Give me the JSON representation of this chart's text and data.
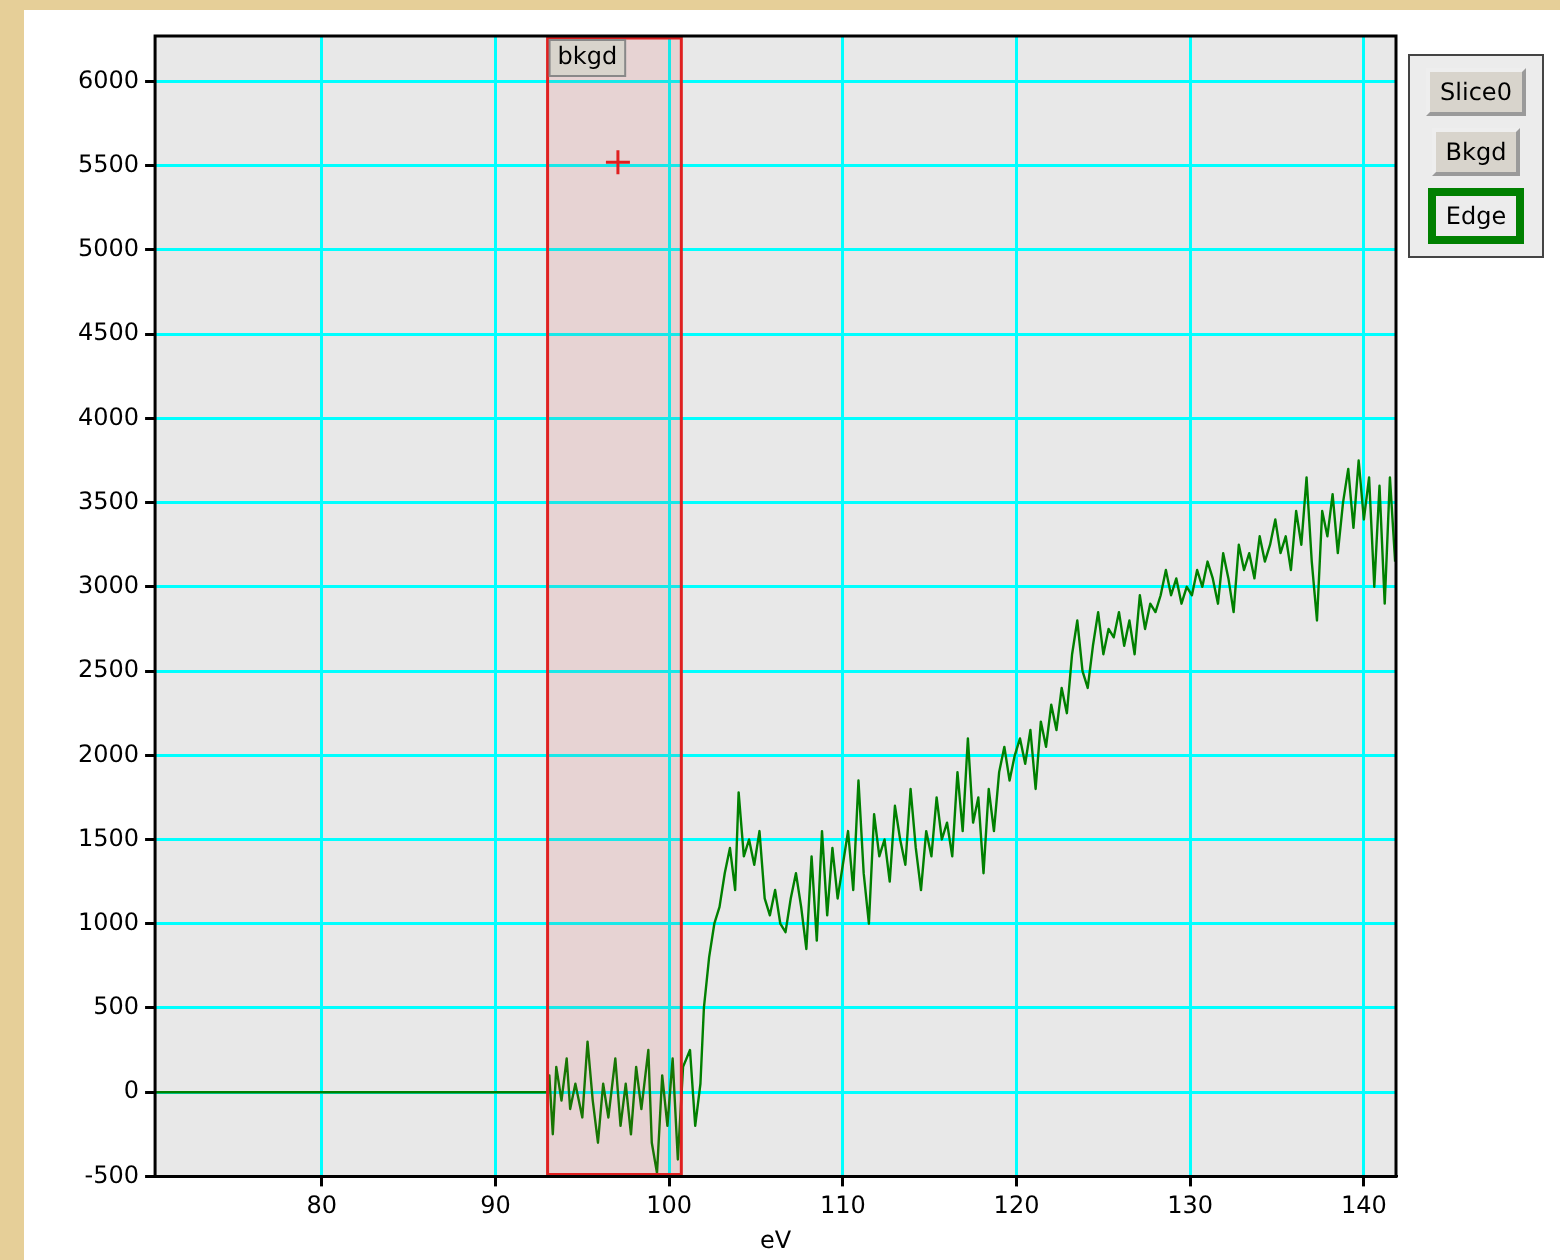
{
  "chart_data": {
    "type": "line",
    "xlabel": "eV",
    "xlim": [
      70.4,
      141.85
    ],
    "xticks": [
      80,
      90,
      100,
      110,
      120,
      130,
      140
    ],
    "ylim": [
      -500,
      6270
    ],
    "yticks": [
      -500,
      0,
      500,
      1000,
      1500,
      2000,
      2500,
      3000,
      3500,
      4000,
      4500,
      5000,
      5500,
      6000
    ],
    "grid": true,
    "legend": false,
    "annotations": [
      "Slice0",
      "Bkgd",
      "Edge"
    ],
    "bands": [
      {
        "axis": "x",
        "from": 93.0,
        "to": 100.7,
        "label": "bkgd",
        "color": "#e02020"
      }
    ],
    "series": [
      {
        "color": "#008000",
        "marker": "none",
        "x": [
          70.4,
          93.0,
          93.1,
          93.3,
          93.5,
          93.8,
          94.1,
          94.3,
          94.6,
          95.0,
          95.3,
          95.6,
          95.9,
          96.2,
          96.5,
          96.9,
          97.2,
          97.5,
          97.8,
          98.1,
          98.4,
          98.8,
          99.0,
          99.3,
          99.6,
          99.9,
          100.2,
          100.5,
          100.8,
          101.2,
          101.5,
          101.8,
          102.0,
          102.3,
          102.6,
          102.9,
          103.2,
          103.5,
          103.8,
          104.0,
          104.3,
          104.6,
          104.9,
          105.2,
          105.5,
          105.8,
          106.1,
          106.4,
          106.7,
          107.0,
          107.3,
          107.6,
          107.9,
          108.2,
          108.5,
          108.8,
          109.1,
          109.4,
          109.7,
          110.0,
          110.3,
          110.6,
          110.9,
          111.2,
          111.5,
          111.8,
          112.1,
          112.4,
          112.7,
          113.0,
          113.3,
          113.6,
          113.9,
          114.2,
          114.5,
          114.8,
          115.1,
          115.4,
          115.7,
          116.0,
          116.3,
          116.6,
          116.9,
          117.2,
          117.5,
          117.8,
          118.1,
          118.4,
          118.7,
          119.0,
          119.3,
          119.6,
          119.9,
          120.2,
          120.5,
          120.8,
          121.1,
          121.4,
          121.7,
          122.0,
          122.3,
          122.6,
          122.9,
          123.2,
          123.5,
          123.8,
          124.1,
          124.4,
          124.7,
          125.0,
          125.3,
          125.6,
          125.9,
          126.2,
          126.5,
          126.8,
          127.1,
          127.4,
          127.7,
          128.0,
          128.3,
          128.6,
          128.9,
          129.2,
          129.5,
          129.8,
          130.1,
          130.4,
          130.7,
          131.0,
          131.3,
          131.6,
          131.9,
          132.2,
          132.5,
          132.8,
          133.1,
          133.4,
          133.7,
          134.0,
          134.3,
          134.6,
          134.9,
          135.2,
          135.5,
          135.8,
          136.1,
          136.4,
          136.7,
          137.0,
          137.3,
          137.6,
          137.9,
          138.2,
          138.5,
          138.8,
          139.1,
          139.4,
          139.7,
          140.0,
          140.3,
          140.6,
          140.9,
          141.2,
          141.5,
          141.8
        ],
        "values": [
          0,
          0,
          100,
          -250,
          150,
          -50,
          200,
          -100,
          50,
          -150,
          300,
          -50,
          -300,
          50,
          -150,
          200,
          -200,
          50,
          -250,
          150,
          -100,
          250,
          -300,
          -480,
          100,
          -200,
          200,
          -400,
          150,
          250,
          -200,
          50,
          500,
          800,
          1000,
          1100,
          1300,
          1450,
          1200,
          1780,
          1400,
          1500,
          1350,
          1550,
          1150,
          1050,
          1200,
          1000,
          950,
          1150,
          1300,
          1100,
          850,
          1400,
          900,
          1550,
          1050,
          1450,
          1150,
          1350,
          1550,
          1200,
          1850,
          1300,
          1000,
          1650,
          1400,
          1500,
          1250,
          1700,
          1500,
          1350,
          1800,
          1450,
          1200,
          1550,
          1400,
          1750,
          1500,
          1600,
          1400,
          1900,
          1550,
          2100,
          1600,
          1750,
          1300,
          1800,
          1550,
          1900,
          2050,
          1850,
          2000,
          2100,
          1950,
          2150,
          1800,
          2200,
          2050,
          2300,
          2150,
          2400,
          2250,
          2600,
          2800,
          2500,
          2400,
          2650,
          2850,
          2600,
          2750,
          2700,
          2850,
          2650,
          2800,
          2600,
          2950,
          2750,
          2900,
          2850,
          2950,
          3100,
          2950,
          3050,
          2900,
          3000,
          2950,
          3100,
          3000,
          3150,
          3050,
          2900,
          3200,
          3050,
          2850,
          3250,
          3100,
          3200,
          3050,
          3300,
          3150,
          3250,
          3400,
          3200,
          3300,
          3100,
          3450,
          3250,
          3650,
          3150,
          2800,
          3450,
          3300,
          3550,
          3200,
          3500,
          3700,
          3350,
          3750,
          3400,
          3650,
          3000,
          3600,
          2900,
          3650,
          3150
        ]
      },
      {
        "type": "scatter",
        "color": "#e02020",
        "marker": "cross",
        "x": [
          97.05
        ],
        "values": [
          5520
        ]
      }
    ]
  }
}
